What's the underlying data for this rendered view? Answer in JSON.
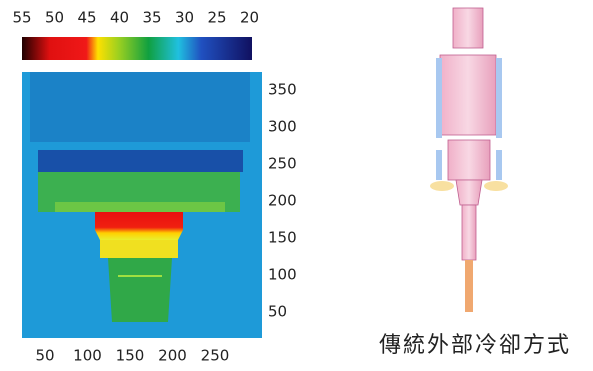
{
  "thermal_image": {
    "colorbar_ticks": [
      55,
      50,
      45,
      40,
      35,
      30,
      25,
      20
    ],
    "xticks": [
      50,
      100,
      150,
      200,
      250
    ],
    "yticks": [
      350,
      300,
      250,
      200,
      150,
      100,
      50
    ]
  },
  "caption": "傳統外部冷卻方式"
}
